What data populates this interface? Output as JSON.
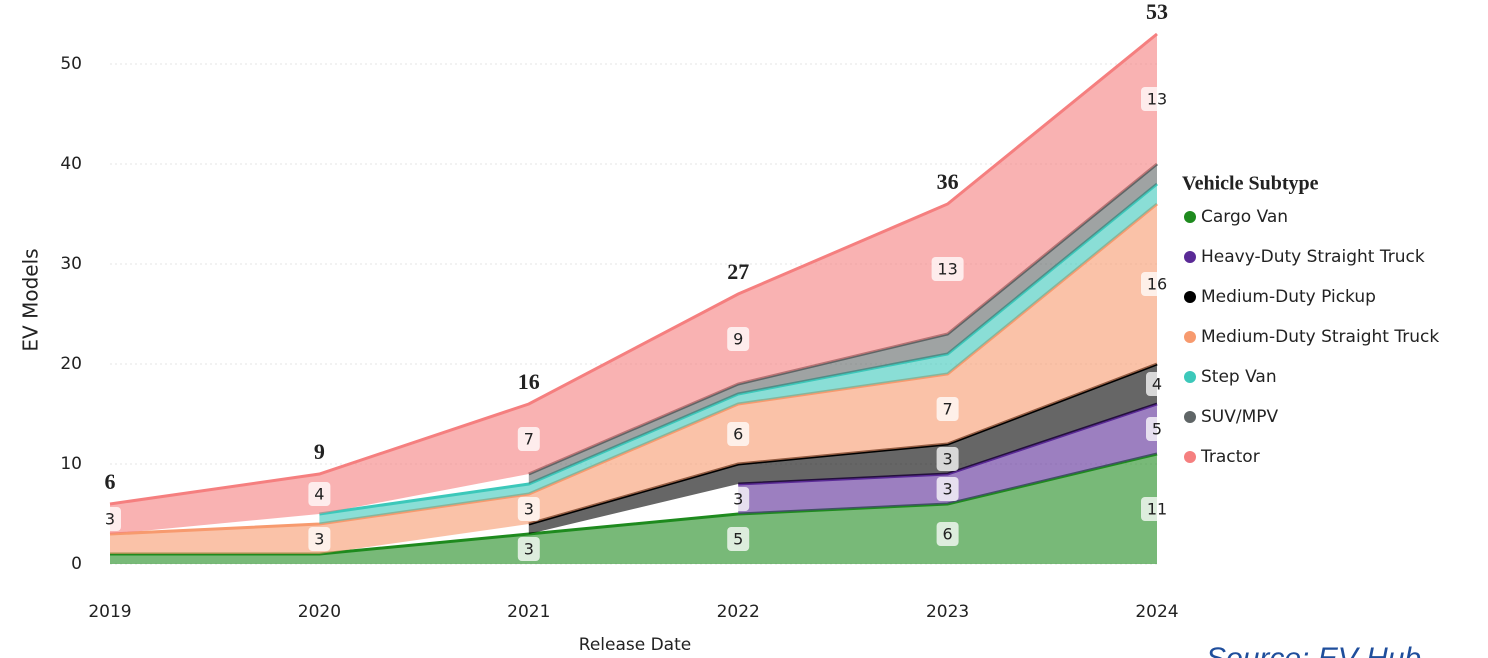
{
  "chart_data": {
    "type": "stacked_area",
    "x_label": "Release Date",
    "y_label": "EV Models",
    "categories": [
      "2019",
      "2020",
      "2021",
      "2022",
      "2023",
      "2024"
    ],
    "totals": [
      6,
      9,
      16,
      27,
      36,
      53
    ],
    "legend_title": "Vehicle Subtype",
    "series": [
      {
        "name": "Cargo Van",
        "color": "#1e8a1e",
        "values": [
          1,
          1,
          3,
          5,
          6,
          11
        ]
      },
      {
        "name": "Heavy-Duty Straight Truck",
        "color": "#5a2a96",
        "values": [
          null,
          null,
          null,
          3,
          3,
          5
        ]
      },
      {
        "name": "Medium-Duty Pickup",
        "color": "#000000",
        "values": [
          null,
          null,
          1,
          2,
          3,
          4
        ]
      },
      {
        "name": "Medium-Duty Straight Truck",
        "color": "#f79a6e",
        "values": [
          2,
          3,
          3,
          6,
          7,
          16
        ]
      },
      {
        "name": "Step Van",
        "color": "#3cc8ba",
        "values": [
          null,
          1,
          1,
          1,
          2,
          2
        ]
      },
      {
        "name": "SUV/MPV",
        "color": "#5f6566",
        "values": [
          null,
          null,
          1,
          1,
          2,
          2
        ]
      },
      {
        "name": "Tractor",
        "color": "#f57f7f",
        "values": [
          3,
          4,
          7,
          9,
          13,
          13
        ]
      }
    ],
    "ylim": [
      0,
      55
    ],
    "yticks": [
      0,
      10,
      20,
      30,
      40,
      50
    ],
    "grid": true,
    "legend": "right",
    "source": "Source: EV Hub"
  }
}
